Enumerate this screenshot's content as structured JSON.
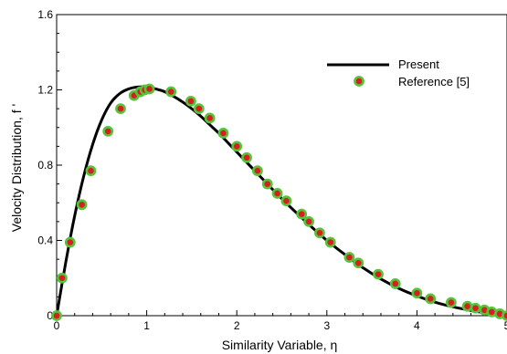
{
  "chart_data": {
    "type": "line",
    "xlabel": "Similarity Variable, η",
    "ylabel": "Velocity Distribution, f '",
    "xlim": [
      0,
      5
    ],
    "ylim": [
      0,
      1.6
    ],
    "x_ticks": [
      0,
      1,
      2,
      3,
      4,
      5
    ],
    "y_ticks": [
      0,
      0.4,
      0.8,
      1.2,
      1.6
    ],
    "x_tick_labels": [
      "0",
      "1",
      "2",
      "3",
      "4",
      "5"
    ],
    "y_tick_labels": [
      "0",
      "0.4",
      "0.8",
      "1.2",
      "1.6"
    ],
    "grid": false,
    "legend_position": "top-right",
    "series": [
      {
        "name": "Present",
        "style": "line",
        "color": "#000000",
        "x": [
          0,
          0.1,
          0.2,
          0.3,
          0.4,
          0.5,
          0.6,
          0.7,
          0.8,
          0.9,
          1.0,
          1.1,
          1.2,
          1.3,
          1.4,
          1.5,
          1.6,
          1.7,
          1.8,
          1.9,
          2.0,
          2.2,
          2.4,
          2.6,
          2.8,
          3.0,
          3.2,
          3.4,
          3.6,
          3.8,
          4.0,
          4.2,
          4.4,
          4.6,
          4.8,
          5.0
        ],
        "y": [
          0,
          0.28,
          0.53,
          0.74,
          0.91,
          1.04,
          1.13,
          1.18,
          1.205,
          1.215,
          1.215,
          1.205,
          1.19,
          1.165,
          1.135,
          1.1,
          1.06,
          1.015,
          0.97,
          0.92,
          0.87,
          0.77,
          0.67,
          0.575,
          0.485,
          0.4,
          0.325,
          0.255,
          0.195,
          0.145,
          0.105,
          0.072,
          0.047,
          0.028,
          0.012,
          0.0
        ]
      },
      {
        "name": "Reference [5]",
        "style": "markers",
        "marker_fill": "#d42020",
        "marker_edge": "#55c43a",
        "x": [
          0.0,
          0.06,
          0.15,
          0.28,
          0.38,
          0.57,
          0.71,
          0.86,
          0.93,
          0.98,
          1.03,
          1.27,
          1.49,
          1.58,
          1.7,
          1.85,
          2.0,
          2.11,
          2.23,
          2.34,
          2.45,
          2.55,
          2.72,
          2.8,
          2.92,
          3.04,
          3.25,
          3.35,
          3.57,
          3.76,
          4.0,
          4.15,
          4.38,
          4.56,
          4.65,
          4.75,
          4.83,
          4.92,
          5.0
        ],
        "y": [
          0.0,
          0.2,
          0.39,
          0.59,
          0.77,
          0.98,
          1.1,
          1.17,
          1.19,
          1.2,
          1.205,
          1.19,
          1.14,
          1.1,
          1.05,
          0.97,
          0.9,
          0.84,
          0.77,
          0.7,
          0.65,
          0.61,
          0.54,
          0.5,
          0.44,
          0.39,
          0.31,
          0.28,
          0.22,
          0.17,
          0.12,
          0.09,
          0.07,
          0.05,
          0.04,
          0.03,
          0.02,
          0.01,
          0.0
        ]
      }
    ]
  }
}
